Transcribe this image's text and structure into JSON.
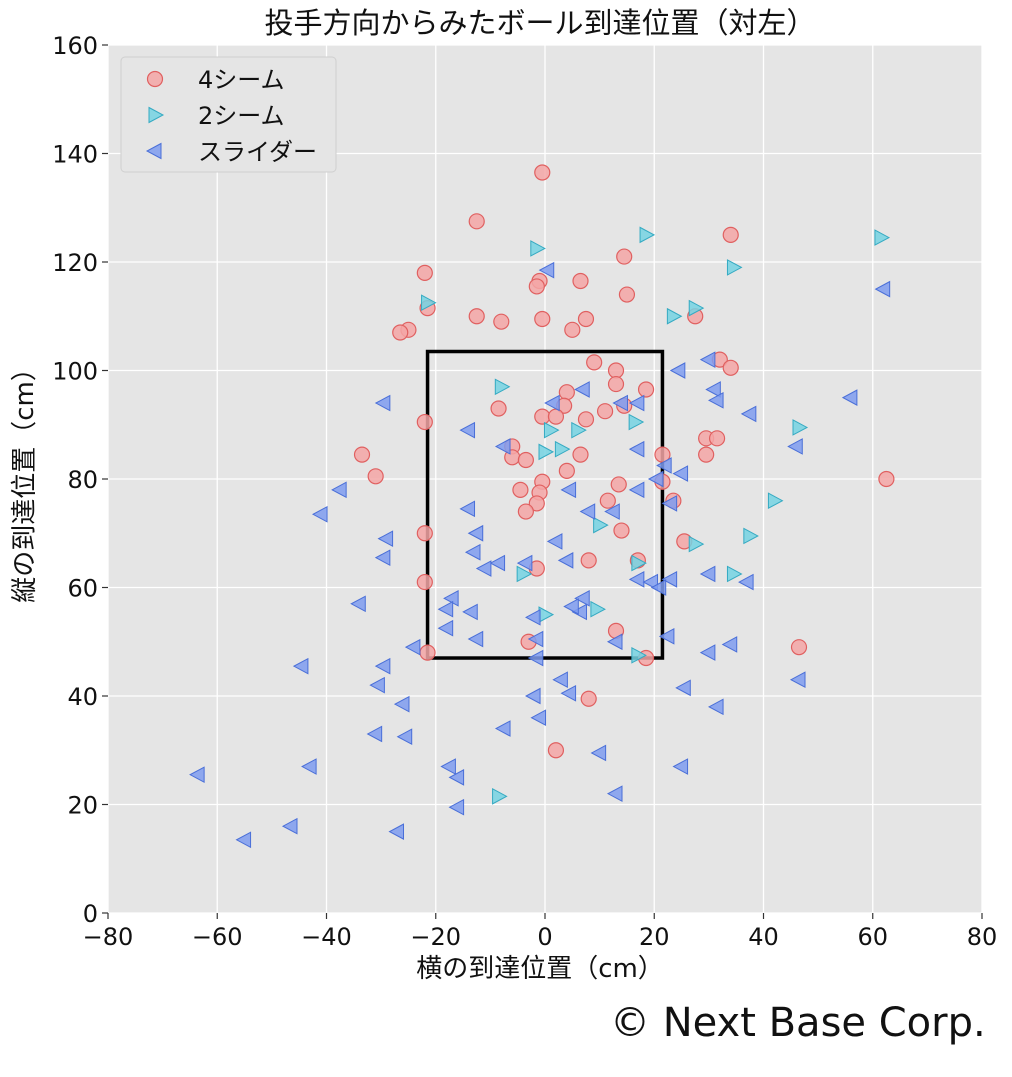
{
  "chart_data": {
    "type": "scatter",
    "title": "投手方向からみたボール到達位置（対左）",
    "xlabel": "横の到達位置（cm）",
    "ylabel": "縦の到達位置（cm）",
    "xlim": [
      -80,
      80
    ],
    "ylim": [
      0,
      160
    ],
    "xticks": [
      -80,
      -60,
      -40,
      -20,
      0,
      20,
      40,
      60,
      80
    ],
    "xtick_labels": [
      "−80",
      "−60",
      "−40",
      "−20",
      "0",
      "20",
      "40",
      "60",
      "80"
    ],
    "yticks": [
      0,
      20,
      40,
      60,
      80,
      100,
      120,
      140,
      160
    ],
    "ytick_labels": [
      "0",
      "20",
      "40",
      "60",
      "80",
      "100",
      "120",
      "140",
      "160"
    ],
    "grid": true,
    "legend_position": "top-left",
    "strike_zone": {
      "x": [
        -21.5,
        21.5
      ],
      "y": [
        47,
        103.5
      ]
    },
    "series": [
      {
        "name": "4シーム",
        "marker": "circle",
        "color": "#f4a6a6",
        "edge": "#e06060",
        "points": [
          [
            -0.5,
            136.5
          ],
          [
            -12.5,
            127.5
          ],
          [
            34,
            125
          ],
          [
            -22,
            118
          ],
          [
            14.5,
            121
          ],
          [
            6.5,
            116.5
          ],
          [
            -1,
            116.5
          ],
          [
            -1.5,
            115.5
          ],
          [
            15,
            114
          ],
          [
            -21.5,
            111.5
          ],
          [
            -12.5,
            110
          ],
          [
            -0.5,
            109.5
          ],
          [
            7.5,
            109.5
          ],
          [
            27.5,
            110
          ],
          [
            -8,
            109
          ],
          [
            -25,
            107.5
          ],
          [
            -26.5,
            107
          ],
          [
            5,
            107.5
          ],
          [
            9,
            101.5
          ],
          [
            32,
            102
          ],
          [
            34,
            100.5
          ],
          [
            13,
            100
          ],
          [
            13,
            97.5
          ],
          [
            18.5,
            96.5
          ],
          [
            4,
            96
          ],
          [
            3.5,
            93.5
          ],
          [
            11,
            92.5
          ],
          [
            14.5,
            93.5
          ],
          [
            -8.5,
            93
          ],
          [
            -0.5,
            91.5
          ],
          [
            2,
            91.5
          ],
          [
            7.5,
            91
          ],
          [
            -22,
            90.5
          ],
          [
            29.5,
            87.5
          ],
          [
            31.5,
            87.5
          ],
          [
            -6,
            86
          ],
          [
            -33.5,
            84.5
          ],
          [
            6.5,
            84.5
          ],
          [
            29.5,
            84.5
          ],
          [
            -6,
            84
          ],
          [
            -3.5,
            83.5
          ],
          [
            21.5,
            84.5
          ],
          [
            4,
            81.5
          ],
          [
            -31,
            80.5
          ],
          [
            62.5,
            80
          ],
          [
            -0.5,
            79.5
          ],
          [
            13.5,
            79
          ],
          [
            21.5,
            79.5
          ],
          [
            -4.5,
            78
          ],
          [
            -1,
            77.5
          ],
          [
            11.5,
            76
          ],
          [
            23.5,
            76
          ],
          [
            -1.5,
            75.5
          ],
          [
            -3.5,
            74
          ],
          [
            14,
            70.5
          ],
          [
            -22,
            70
          ],
          [
            25.5,
            68.5
          ],
          [
            17,
            65
          ],
          [
            8,
            65
          ],
          [
            -1.5,
            63.5
          ],
          [
            -22,
            61
          ],
          [
            13,
            52
          ],
          [
            -3,
            50
          ],
          [
            46.5,
            49
          ],
          [
            -21.5,
            48
          ],
          [
            18.5,
            47
          ],
          [
            8,
            39.5
          ],
          [
            2,
            30
          ]
        ]
      },
      {
        "name": "2シーム",
        "marker": "triangle-right",
        "color": "#76d3e3",
        "edge": "#35aac2",
        "points": [
          [
            18.5,
            125
          ],
          [
            61.5,
            124.5
          ],
          [
            -1.5,
            122.5
          ],
          [
            34.5,
            119
          ],
          [
            -21.5,
            112.5
          ],
          [
            27.5,
            111.5
          ],
          [
            23.5,
            110
          ],
          [
            -8,
            97
          ],
          [
            16.5,
            90.5
          ],
          [
            46.5,
            89.5
          ],
          [
            1,
            89
          ],
          [
            6,
            89
          ],
          [
            3,
            85.5
          ],
          [
            0,
            85
          ],
          [
            42,
            76
          ],
          [
            10,
            71.5
          ],
          [
            37.5,
            69.5
          ],
          [
            27.5,
            68
          ],
          [
            17,
            64.5
          ],
          [
            34.5,
            62.5
          ],
          [
            -4,
            62.5
          ],
          [
            0,
            55
          ],
          [
            9.5,
            56
          ],
          [
            17,
            47.5
          ],
          [
            -8.5,
            21.5
          ]
        ]
      },
      {
        "name": "スライダー",
        "marker": "triangle-left",
        "color": "#7f9cf0",
        "edge": "#4a6fd8",
        "points": [
          [
            0.5,
            118.5
          ],
          [
            62,
            115
          ],
          [
            24.5,
            100
          ],
          [
            30,
            102
          ],
          [
            31,
            96.5
          ],
          [
            7,
            96.5
          ],
          [
            56,
            95
          ],
          [
            -29.5,
            94
          ],
          [
            31.5,
            94.5
          ],
          [
            1.5,
            94
          ],
          [
            37.5,
            92
          ],
          [
            14,
            94
          ],
          [
            17,
            94
          ],
          [
            -14,
            89
          ],
          [
            -7.5,
            86
          ],
          [
            17,
            85.5
          ],
          [
            46,
            86
          ],
          [
            22,
            82.5
          ],
          [
            20.5,
            80
          ],
          [
            25,
            81
          ],
          [
            -37.5,
            78
          ],
          [
            17,
            78
          ],
          [
            4.5,
            78
          ],
          [
            23,
            75.5
          ],
          [
            -14,
            74.5
          ],
          [
            12.5,
            74
          ],
          [
            8,
            74
          ],
          [
            -41,
            73.5
          ],
          [
            -12.5,
            70
          ],
          [
            -29,
            69
          ],
          [
            2,
            68.5
          ],
          [
            -29.5,
            65.5
          ],
          [
            -13,
            66.5
          ],
          [
            -8.5,
            64.5
          ],
          [
            -11,
            63.5
          ],
          [
            -3.5,
            64.5
          ],
          [
            4,
            65
          ],
          [
            30,
            62.5
          ],
          [
            37,
            61
          ],
          [
            17,
            61.5
          ],
          [
            19.5,
            61
          ],
          [
            23,
            61.5
          ],
          [
            21,
            60
          ],
          [
            -34,
            57
          ],
          [
            -17,
            58
          ],
          [
            7,
            58
          ],
          [
            6.5,
            55.5
          ],
          [
            -18,
            56
          ],
          [
            -13.5,
            55.5
          ],
          [
            -2,
            54.5
          ],
          [
            5,
            56.5
          ],
          [
            -18,
            52.5
          ],
          [
            -12.5,
            50.5
          ],
          [
            13,
            50
          ],
          [
            -1.5,
            50.5
          ],
          [
            22.5,
            51
          ],
          [
            34,
            49.5
          ],
          [
            30,
            48
          ],
          [
            -24,
            49
          ],
          [
            -1.5,
            47
          ],
          [
            -29.5,
            45.5
          ],
          [
            -44.5,
            45.5
          ],
          [
            46.5,
            43
          ],
          [
            3,
            43
          ],
          [
            -30.5,
            42
          ],
          [
            25.5,
            41.5
          ],
          [
            4.5,
            40.5
          ],
          [
            -2,
            40
          ],
          [
            -26,
            38.5
          ],
          [
            31.5,
            38
          ],
          [
            -1,
            36
          ],
          [
            -7.5,
            34
          ],
          [
            -31,
            33
          ],
          [
            -25.5,
            32.5
          ],
          [
            10,
            29.5
          ],
          [
            -43,
            27
          ],
          [
            25,
            27
          ],
          [
            -17.5,
            27
          ],
          [
            -63.5,
            25.5
          ],
          [
            -16,
            25
          ],
          [
            13,
            22
          ],
          [
            -16,
            19.5
          ],
          [
            -46.5,
            16
          ],
          [
            -27,
            15
          ],
          [
            -55,
            13.5
          ]
        ]
      }
    ]
  },
  "footer": {
    "copyright": "© Next Base Corp."
  }
}
